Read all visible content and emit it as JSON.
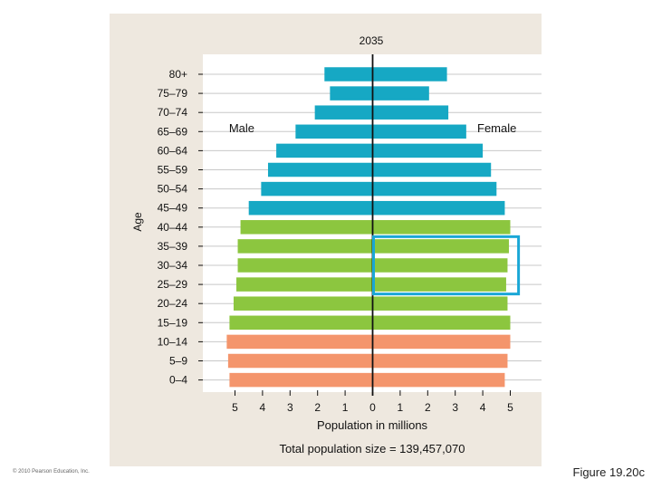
{
  "copyright": "© 2010 Pearson Education, Inc.",
  "figure_label": "Figure 19.20c",
  "colors": {
    "panel_bg": "#eee8df",
    "post_reproductive": "#16a8c4",
    "reproductive": "#8cc63f",
    "pre_reproductive": "#f4956c",
    "highlight_box": "#1aa7d6",
    "axis": "#111111"
  },
  "chart_data": {
    "type": "bar",
    "orientation": "horizontal-population-pyramid",
    "title": "2035",
    "xlabel": "Population in millions",
    "ylabel": "Age",
    "footer": "Total population size = 139,457,070",
    "left_label": "Male",
    "right_label": "Female",
    "categories": [
      "80+",
      "75–79",
      "70–74",
      "65–69",
      "60–64",
      "55–59",
      "50–54",
      "45–49",
      "40–44",
      "35–39",
      "30–34",
      "25–29",
      "20–24",
      "15–19",
      "10–14",
      "5–9",
      "0–4"
    ],
    "series": [
      {
        "name": "Male",
        "values": [
          1.75,
          1.55,
          2.1,
          2.8,
          3.5,
          3.8,
          4.05,
          4.5,
          4.8,
          4.9,
          4.9,
          4.95,
          5.05,
          5.2,
          5.3,
          5.25,
          5.2
        ]
      },
      {
        "name": "Female",
        "values": [
          2.7,
          2.05,
          2.75,
          3.4,
          4.0,
          4.3,
          4.5,
          4.8,
          5.0,
          4.95,
          4.9,
          4.85,
          4.9,
          5.0,
          5.0,
          4.9,
          4.8
        ]
      }
    ],
    "color_groups": [
      "post",
      "post",
      "post",
      "post",
      "post",
      "post",
      "post",
      "post",
      "repro",
      "repro",
      "repro",
      "repro",
      "repro",
      "repro",
      "pre",
      "pre",
      "pre"
    ],
    "x_ticks": [
      "5",
      "4",
      "3",
      "2",
      "1",
      "0",
      "1",
      "2",
      "3",
      "4",
      "5"
    ],
    "xlim": [
      -5,
      5
    ],
    "grid": true,
    "highlight": {
      "from_category": "35–39",
      "to_category": "25–29",
      "side": "Female"
    }
  }
}
